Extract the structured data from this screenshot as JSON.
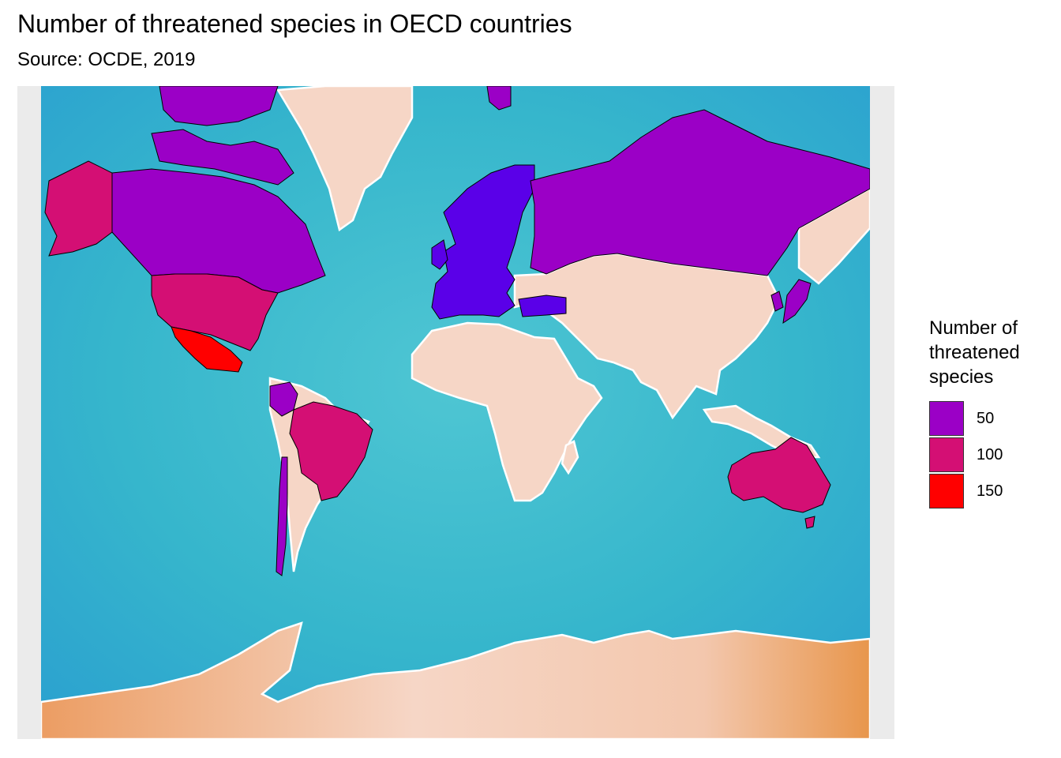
{
  "title": "Number of threatened species in OECD countries",
  "subtitle": "Source: OCDE, 2019",
  "legend": {
    "title": "Number of\nthreatened\nspecies",
    "items": [
      {
        "label": "50",
        "color": "#9b00c6"
      },
      {
        "label": "100",
        "color": "#d40f74"
      },
      {
        "label": "150",
        "color": "#ff0000"
      }
    ]
  },
  "colors": {
    "ocean": "#3dbfcf",
    "ocean_deep": "#2a9fd0",
    "land": "#f6d6c6",
    "land_warm": "#ec9d63",
    "panel_background": "#ebebeb",
    "low": "#5a00e8",
    "mid": "#9b00c6",
    "high": "#d40f74",
    "top": "#ff0000"
  },
  "map": {
    "projection": "mercator",
    "basemap": "watercolor",
    "regions": [
      {
        "name": "Canada",
        "fill": "mid"
      },
      {
        "name": "Alaska (United States)",
        "fill": "high"
      },
      {
        "name": "United States",
        "fill": "high"
      },
      {
        "name": "Mexico",
        "fill": "top"
      },
      {
        "name": "Colombia",
        "fill": "mid"
      },
      {
        "name": "Brazil",
        "fill": "high"
      },
      {
        "name": "Chile",
        "fill": "mid"
      },
      {
        "name": "Europe (OECD members)",
        "fill": "low"
      },
      {
        "name": "Turkey",
        "fill": "low"
      },
      {
        "name": "Russia",
        "fill": "mid"
      },
      {
        "name": "Japan",
        "fill": "mid"
      },
      {
        "name": "Korea",
        "fill": "mid"
      },
      {
        "name": "Australia",
        "fill": "high"
      },
      {
        "name": "Arctic islands (Canada)",
        "fill": "mid"
      }
    ],
    "base_land": [
      "Greenland",
      "Africa",
      "Asia",
      "South America (rest)",
      "Antarctica",
      "Indonesia"
    ]
  }
}
